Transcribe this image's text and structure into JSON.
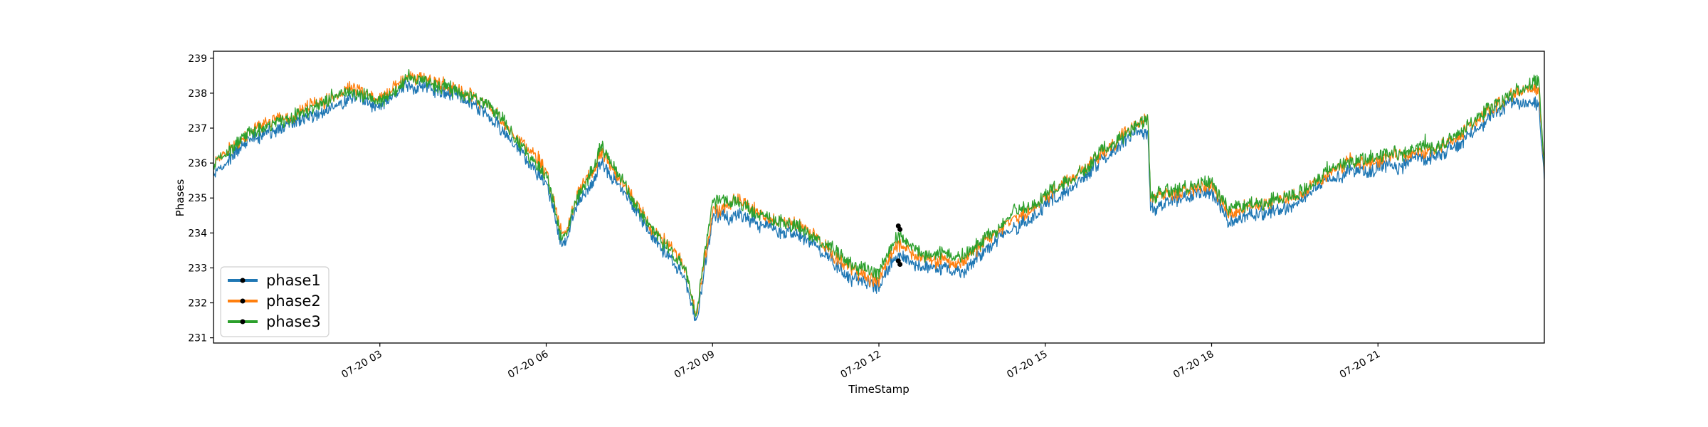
{
  "chart_data": {
    "type": "line",
    "title": "",
    "xlabel": "TimeStamp",
    "ylabel": "Phases",
    "ylim": [
      230.85,
      239.2
    ],
    "xlim_hours": [
      0,
      24
    ],
    "y_ticks": [
      231,
      232,
      233,
      234,
      235,
      236,
      237,
      238,
      239
    ],
    "x_ticks": [
      {
        "hour": 3,
        "label": "07-20 03"
      },
      {
        "hour": 6,
        "label": "07-20 06"
      },
      {
        "hour": 9,
        "label": "07-20 09"
      },
      {
        "hour": 12,
        "label": "07-20 12"
      },
      {
        "hour": 15,
        "label": "07-20 15"
      },
      {
        "hour": 18,
        "label": "07-20 18"
      },
      {
        "hour": 21,
        "label": "07-20 21"
      }
    ],
    "legend_position": "lower-left",
    "series": [
      {
        "name": "phase1",
        "color": "#1f77b4",
        "x": [
          0,
          0.5,
          1,
          1.5,
          2,
          2.5,
          3,
          3.5,
          4,
          4.5,
          5,
          5.5,
          6,
          6.3,
          6.6,
          7,
          7.5,
          8,
          8.5,
          8.7,
          9,
          9.5,
          10,
          10.5,
          11,
          11.5,
          12,
          12.3,
          12.6,
          13,
          13.5,
          14,
          14.5,
          15,
          15.5,
          16,
          16.5,
          16.85,
          16.9,
          17.5,
          18,
          18.3,
          18.6,
          19,
          19.5,
          20,
          20.5,
          21,
          21.5,
          22,
          22.5,
          23,
          23.5,
          23.9,
          24
        ],
        "values": [
          235.7,
          236.5,
          236.9,
          237.2,
          237.5,
          237.9,
          237.6,
          238.3,
          238.1,
          237.8,
          237.4,
          236.4,
          235.5,
          233.6,
          234.9,
          236.0,
          234.9,
          233.7,
          232.8,
          231.4,
          234.4,
          234.6,
          234.1,
          234.0,
          233.4,
          232.7,
          232.4,
          233.4,
          233.2,
          233.0,
          232.9,
          233.6,
          234.2,
          234.8,
          235.3,
          236.0,
          236.7,
          236.9,
          234.7,
          235.0,
          235.2,
          234.3,
          234.5,
          234.6,
          234.8,
          235.4,
          235.8,
          235.8,
          236.0,
          236.2,
          236.5,
          237.3,
          237.7,
          237.8,
          235.5
        ]
      },
      {
        "name": "phase2",
        "color": "#ff7f0e",
        "x": [
          0,
          0.5,
          1,
          1.5,
          2,
          2.5,
          3,
          3.5,
          4,
          4.5,
          5,
          5.5,
          6,
          6.3,
          6.6,
          7,
          7.5,
          8,
          8.5,
          8.7,
          9,
          9.5,
          10,
          10.5,
          11,
          11.5,
          12,
          12.3,
          12.6,
          13,
          13.5,
          14,
          14.5,
          15,
          15.5,
          16,
          16.5,
          16.85,
          16.9,
          17.5,
          18,
          18.3,
          18.6,
          19,
          19.5,
          20,
          20.5,
          21,
          21.5,
          22,
          22.5,
          23,
          23.5,
          23.9,
          24
        ],
        "values": [
          235.95,
          236.75,
          237.15,
          237.45,
          237.75,
          238.15,
          237.85,
          238.55,
          238.35,
          238.05,
          237.65,
          236.65,
          235.75,
          233.85,
          235.15,
          236.3,
          235.15,
          233.95,
          233.05,
          231.65,
          234.6,
          234.9,
          234.35,
          234.25,
          233.65,
          232.95,
          232.65,
          233.65,
          233.45,
          233.25,
          233.15,
          233.85,
          234.45,
          235.05,
          235.55,
          236.25,
          236.95,
          237.2,
          234.95,
          235.25,
          235.45,
          234.55,
          234.75,
          234.85,
          235.05,
          235.65,
          236.05,
          236.05,
          236.25,
          236.45,
          236.75,
          237.55,
          237.95,
          238.1,
          235.75
        ]
      },
      {
        "name": "phase3",
        "color": "#2ca02c",
        "x": [
          0,
          0.5,
          1,
          1.5,
          2,
          2.5,
          3,
          3.5,
          4,
          4.5,
          5,
          5.5,
          6,
          6.3,
          6.6,
          7,
          7.5,
          8,
          8.5,
          8.7,
          9,
          9.5,
          10,
          10.5,
          11,
          11.5,
          12,
          12.3,
          12.6,
          13,
          13.5,
          14,
          14.5,
          15,
          15.5,
          16,
          16.5,
          16.85,
          16.9,
          17.5,
          18,
          18.3,
          18.6,
          19,
          19.5,
          20,
          20.5,
          21,
          21.5,
          22,
          22.5,
          23,
          23.5,
          23.9,
          24
        ],
        "values": [
          235.9,
          236.7,
          237.1,
          237.4,
          237.7,
          238.1,
          237.8,
          238.5,
          238.3,
          238.0,
          237.6,
          236.6,
          235.7,
          233.8,
          235.1,
          236.5,
          235.1,
          233.9,
          233.0,
          231.6,
          234.8,
          234.9,
          234.4,
          234.3,
          233.7,
          233.1,
          232.8,
          233.9,
          233.6,
          233.4,
          233.3,
          234.0,
          234.6,
          235.1,
          235.6,
          236.3,
          237.0,
          237.3,
          235.0,
          235.3,
          235.5,
          234.6,
          234.8,
          234.9,
          235.1,
          235.7,
          236.1,
          236.1,
          236.3,
          236.5,
          236.8,
          237.6,
          238.0,
          238.3,
          235.8
        ]
      }
    ],
    "markers": [
      {
        "hour": 12.35,
        "value": 234.2
      },
      {
        "hour": 12.38,
        "value": 234.1
      },
      {
        "hour": 12.35,
        "value": 233.2
      },
      {
        "hour": 12.38,
        "value": 233.1
      }
    ]
  }
}
